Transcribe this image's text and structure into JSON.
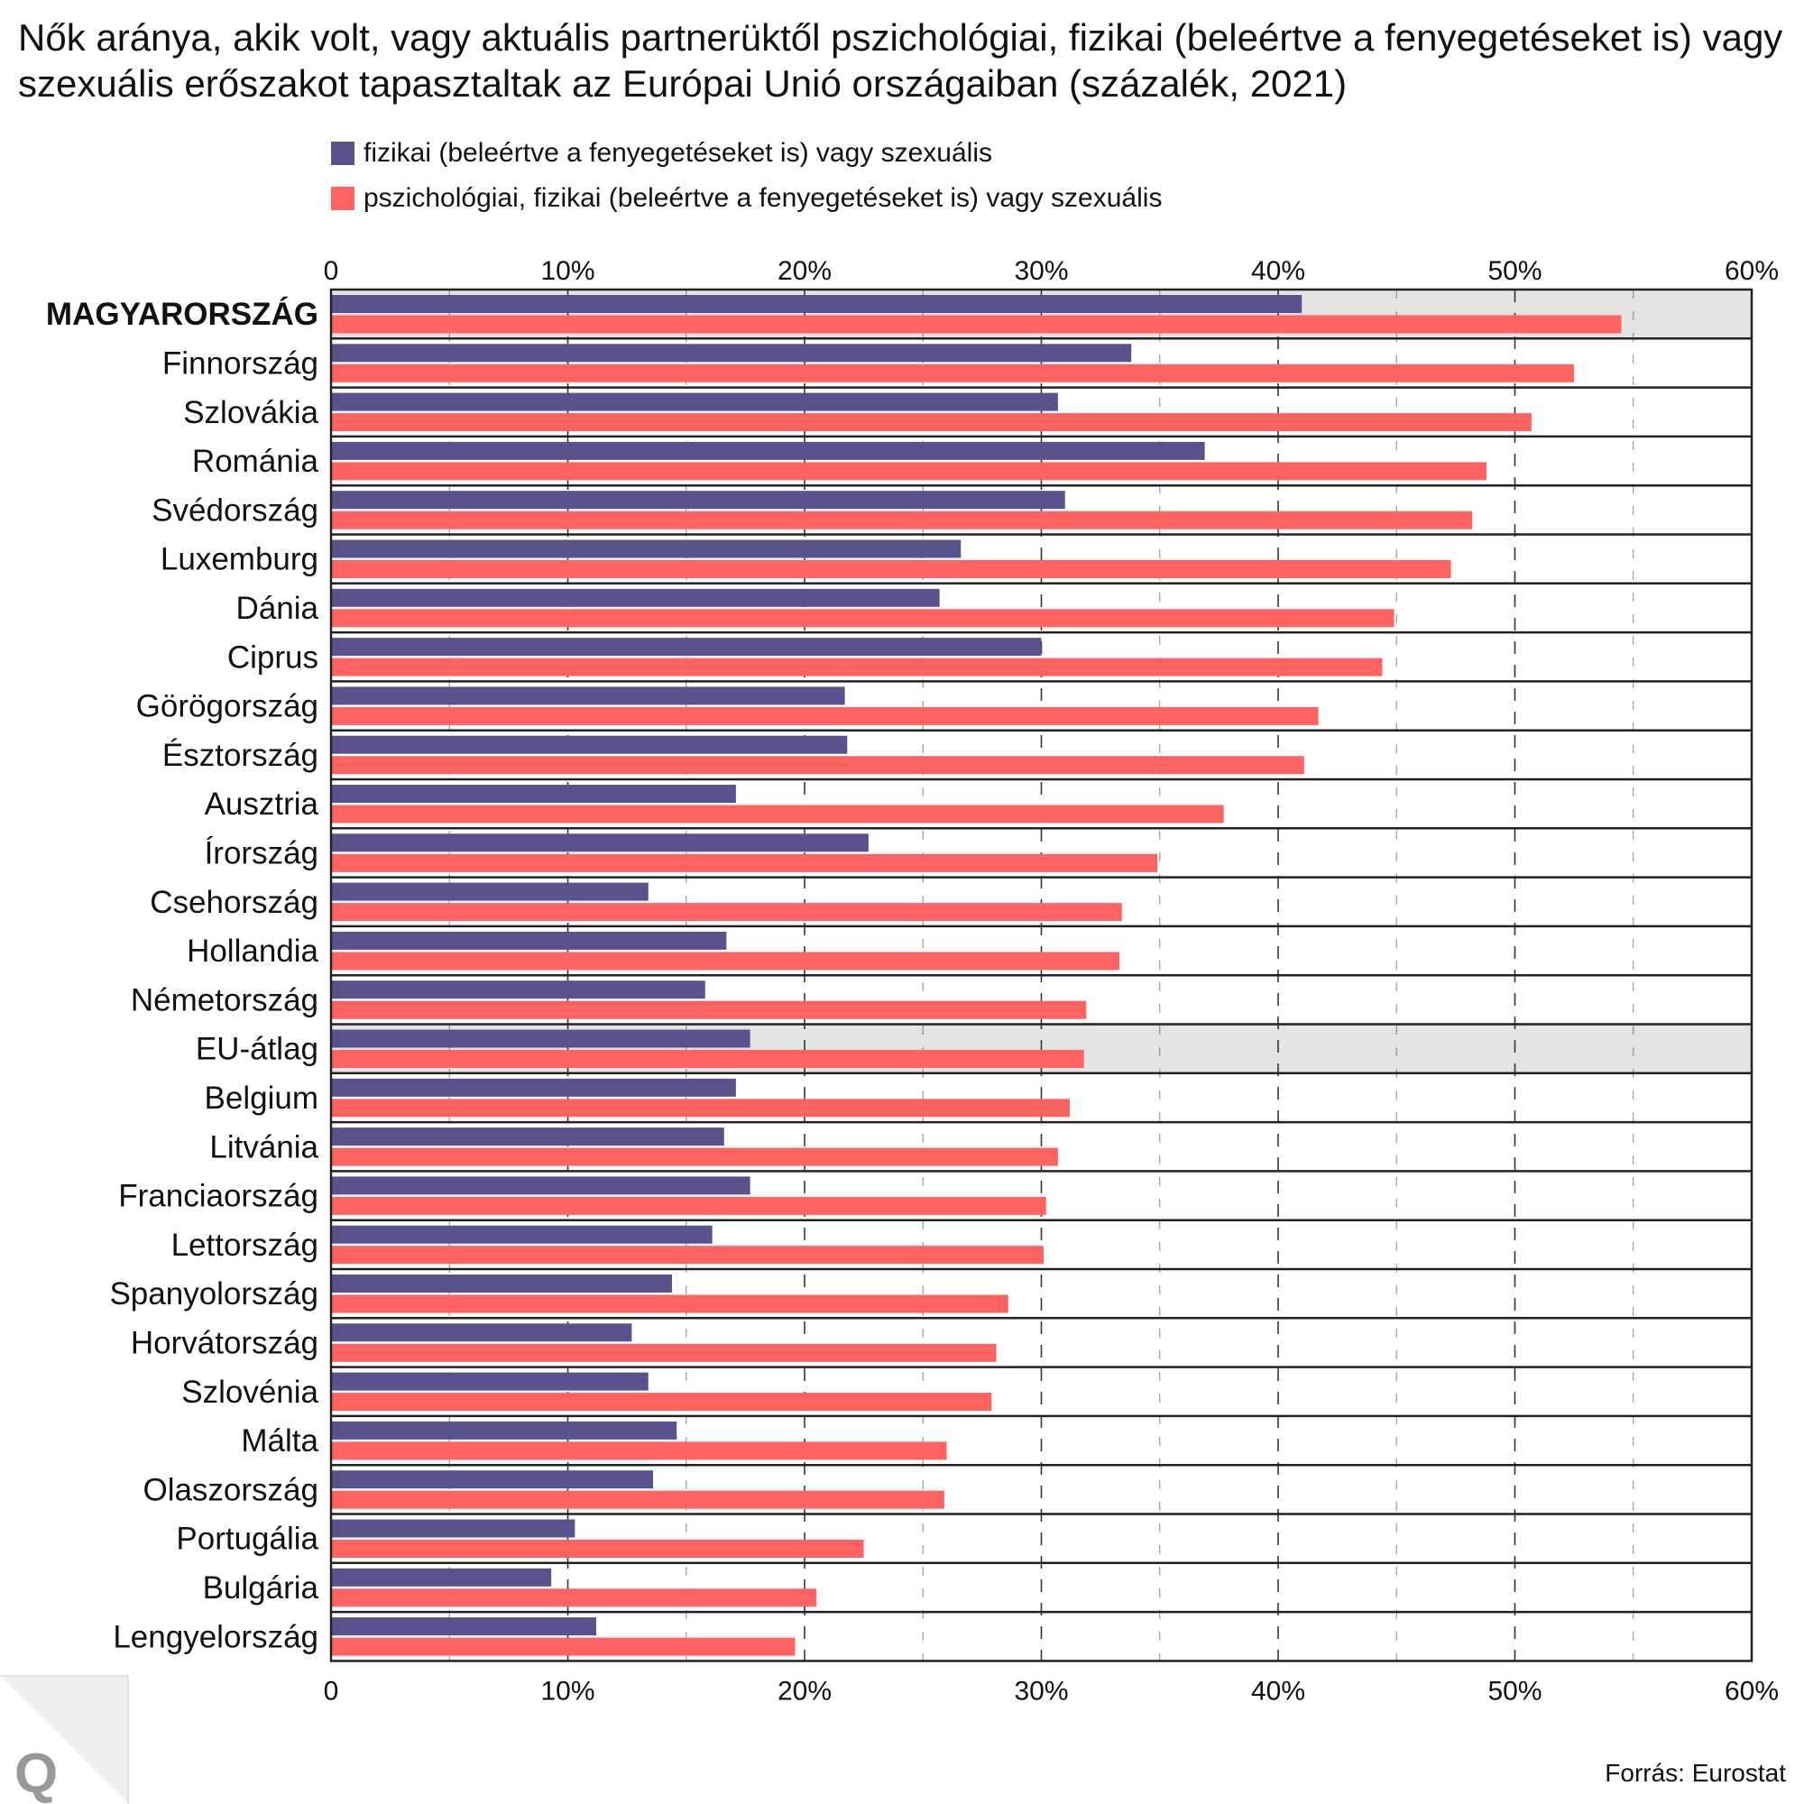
{
  "title": "Nők aránya, akik volt, vagy aktuális partnerüktől pszichológiai, fizikai (beleértve a fenyegetéseket is) vagy szexuális erőszakot tapasztaltak az Európai Unió országaiban (százalék, 2021)",
  "source": "Forrás: Eurostat",
  "logo": {
    "letter": "Q",
    "icon": "publisher-logo-icon"
  },
  "colors": {
    "series1": "#5a528c",
    "series2": "#ff6361",
    "highlight_row": "#e4e4e4",
    "frame": "#222222",
    "grid": "#444444"
  },
  "chart_data": {
    "type": "bar",
    "orientation": "horizontal",
    "title": "Nők aránya, akik volt, vagy aktuális partnerüktől pszichológiai, fizikai (beleértve a fenyegetéseket is) vagy szexuális erőszakot tapasztaltak az Európai Unió országaiban (százalék, 2021)",
    "xlabel": "",
    "ylabel": "",
    "xlim": [
      0,
      60
    ],
    "x_ticks": [
      0,
      10,
      20,
      30,
      40,
      50,
      60
    ],
    "x_tick_labels": [
      "0",
      "10%",
      "20%",
      "30%",
      "40%",
      "50%",
      "60%"
    ],
    "x_axis_position": "top-and-bottom",
    "grid": true,
    "legend_position": "top",
    "highlighted_categories": [
      "MAGYARORSZÁG",
      "EU-átlag"
    ],
    "bold_categories": [
      "MAGYARORSZÁG"
    ],
    "categories": [
      "MAGYARORSZÁG",
      "Finnország",
      "Szlovákia",
      "Románia",
      "Svédország",
      "Luxemburg",
      "Dánia",
      "Ciprus",
      "Görögország",
      "Észtország",
      "Ausztria",
      "Írország",
      "Csehország",
      "Hollandia",
      "Németország",
      "EU-átlag",
      "Belgium",
      "Litvánia",
      "Franciaország",
      "Lettország",
      "Spanyolország",
      "Horvátország",
      "Szlovénia",
      "Málta",
      "Olaszország",
      "Portugália",
      "Bulgária",
      "Lengyelország"
    ],
    "series": [
      {
        "name": "fizikai (beleértve a fenyegetéseket is) vagy szexuális",
        "color": "#5a528c",
        "values": [
          41.0,
          33.8,
          30.7,
          36.9,
          31.0,
          26.6,
          25.7,
          30.0,
          21.7,
          21.8,
          17.1,
          22.7,
          13.4,
          16.7,
          15.8,
          17.7,
          17.1,
          16.6,
          17.7,
          16.1,
          14.4,
          12.7,
          13.4,
          14.6,
          13.6,
          10.3,
          9.3,
          11.2
        ]
      },
      {
        "name": "pszichológiai, fizikai (beleértve a fenyegetéseket is) vagy szexuális",
        "color": "#ff6361",
        "values": [
          54.5,
          52.5,
          50.7,
          48.8,
          48.2,
          47.3,
          44.9,
          44.4,
          41.7,
          41.1,
          37.7,
          34.9,
          33.4,
          33.3,
          31.9,
          31.8,
          31.2,
          30.7,
          30.2,
          30.1,
          28.6,
          28.1,
          27.9,
          26.0,
          25.9,
          22.5,
          20.5,
          19.6
        ]
      }
    ]
  }
}
